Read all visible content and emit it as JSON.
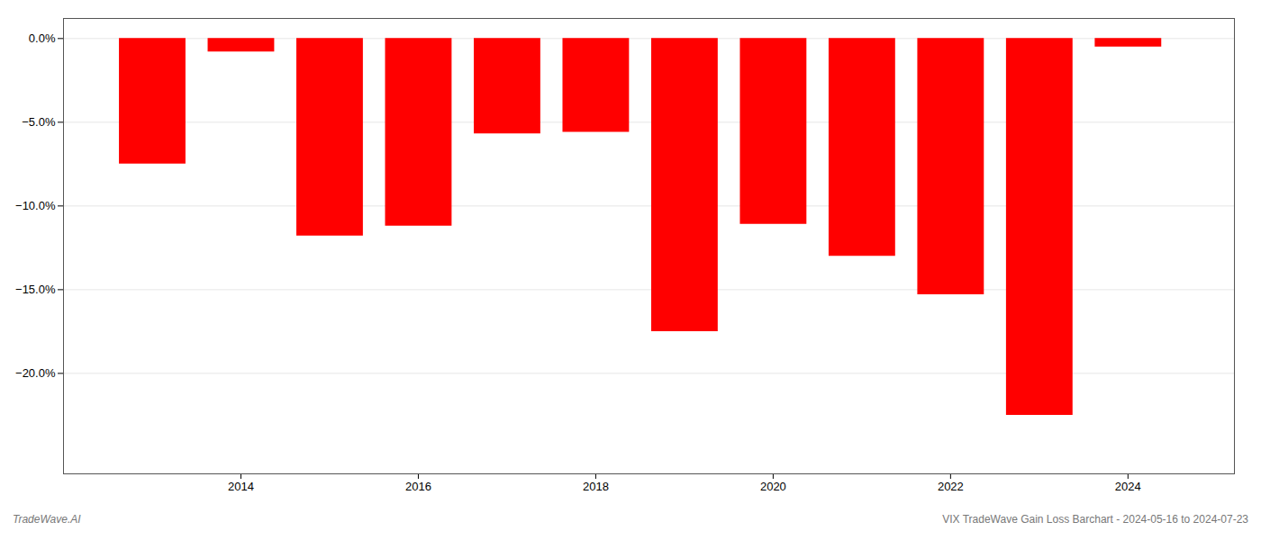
{
  "chart_data": {
    "type": "bar",
    "x": [
      2013,
      2014,
      2015,
      2016,
      2017,
      2018,
      2019,
      2020,
      2021,
      2022,
      2023,
      2024
    ],
    "values": [
      -7.5,
      -0.8,
      -11.8,
      -11.2,
      -5.7,
      -5.6,
      -17.5,
      -11.1,
      -13.0,
      -15.3,
      -22.5,
      -0.5
    ],
    "color": "#ff0000",
    "xlim": [
      2012.0,
      2025.2
    ],
    "xticks": [
      2014,
      2016,
      2018,
      2020,
      2022,
      2024
    ],
    "ylim": [
      -26,
      1.2
    ],
    "yticks": [
      {
        "value": 0.0,
        "label": "0.0%"
      },
      {
        "value": -5.0,
        "label": "−5.0%"
      },
      {
        "value": -10.0,
        "label": "−10.0%"
      },
      {
        "value": -15.0,
        "label": "−15.0%"
      },
      {
        "value": -20.0,
        "label": "−20.0%"
      }
    ],
    "grid": true,
    "annotations": [
      "TradeWave.AI",
      "VIX TradeWave Gain Loss Barchart - 2024-05-16 to 2024-07-23"
    ]
  }
}
